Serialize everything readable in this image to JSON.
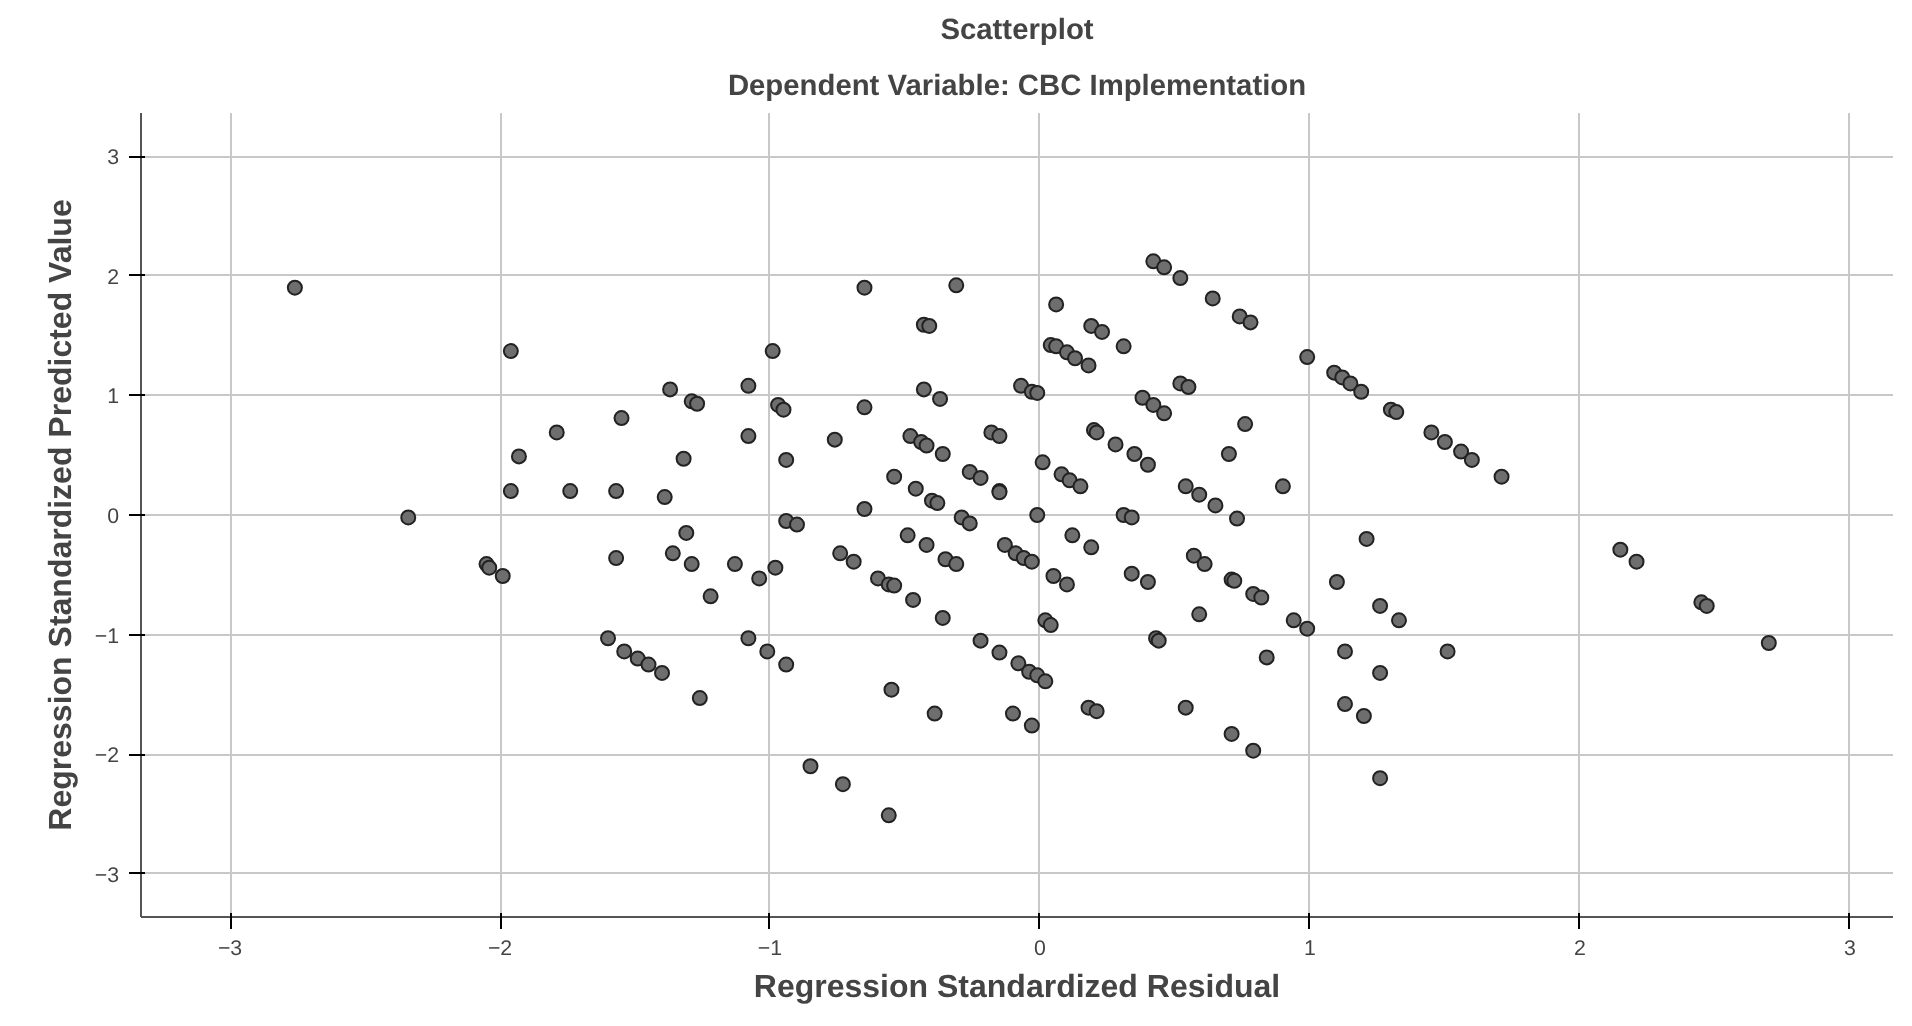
{
  "chart_data": {
    "type": "scatter",
    "title": "Scatterplot",
    "subtitle": "Dependent Variable: CBC Implementation",
    "xlabel": "Regression Standardized Residual",
    "ylabel": "Regression Standardized Predicted Value",
    "xlim": [
      -3.33,
      3.16
    ],
    "ylim": [
      -3.36,
      3.36
    ],
    "xticks": [
      -3,
      -2,
      -1,
      0,
      1,
      2,
      3
    ],
    "yticks": [
      -3,
      -2,
      -1,
      0,
      1,
      2,
      3
    ],
    "grid": true,
    "marker": "circle",
    "series": [
      {
        "color": "#6e6e6e",
        "x": [
          -2.76,
          -2.34,
          -1.96,
          -1.93,
          -1.96,
          -2.05,
          -2.04,
          -1.99,
          -1.79,
          -1.74,
          -1.55,
          -1.57,
          -1.6,
          -1.57,
          -1.54,
          -1.49,
          -1.45,
          -1.4,
          -1.39,
          -1.37,
          -1.32,
          -1.31,
          -1.36,
          -1.29,
          -1.29,
          -1.27,
          -1.26,
          -1.22,
          -1.13,
          -1.08,
          -1.08,
          -1.08,
          -1.04,
          -1.01,
          -0.99,
          -0.98,
          -0.97,
          -0.95,
          -0.94,
          -0.94,
          -0.94,
          -0.9,
          0.42,
          0.46,
          -0.65,
          -0.31,
          0.06,
          -0.43,
          -0.41,
          0.19,
          0.23,
          0.31,
          0.04,
          0.06,
          0.1,
          0.13,
          0.18,
          -0.43,
          -0.37,
          -0.07,
          -0.03,
          -0.01,
          0.38,
          0.42,
          0.46,
          -0.65,
          -0.76,
          -0.48,
          -0.44,
          -0.42,
          -0.36,
          -0.18,
          -0.15,
          0.2,
          0.21,
          0.28,
          0.35,
          0.4,
          0.01,
          -0.54,
          -0.46,
          -0.4,
          -0.38,
          -0.26,
          -0.22,
          -0.15,
          -0.15,
          0.08,
          0.11,
          0.15,
          -0.65,
          -0.01,
          -0.29,
          -0.26,
          0.31,
          0.34,
          -0.49,
          -0.42,
          -0.35,
          -0.31,
          -0.13,
          -0.09,
          -0.06,
          -0.03,
          0.12,
          0.19,
          -0.74,
          -0.69,
          -0.6,
          -0.56,
          -0.54,
          -0.47,
          -0.36,
          0.05,
          0.1,
          0.34,
          0.4,
          0.02,
          0.04,
          -0.22,
          -0.15,
          -0.08,
          -0.04,
          -0.01,
          0.02,
          0.43,
          0.44,
          -0.55,
          -0.39,
          -0.1,
          -0.03,
          0.18,
          0.21,
          -0.85,
          -0.73,
          -0.56,
          0.52,
          0.64,
          0.74,
          0.78,
          0.99,
          1.09,
          1.12,
          1.15,
          1.19,
          0.52,
          0.55,
          1.3,
          1.32,
          1.45,
          1.5,
          1.56,
          1.6,
          1.71,
          0.76,
          0.7,
          0.54,
          0.59,
          0.65,
          0.9,
          0.73,
          1.21,
          0.57,
          0.61,
          0.71,
          0.72,
          0.79,
          0.82,
          1.1,
          0.59,
          0.94,
          0.99,
          1.26,
          1.33,
          0.84,
          1.13,
          1.51,
          1.26,
          0.54,
          1.13,
          1.2,
          0.71,
          0.79,
          1.26,
          2.15,
          2.21,
          2.45,
          2.47,
          2.7
        ],
        "values": [
          1.9,
          -0.02,
          1.37,
          0.49,
          0.2,
          -0.41,
          -0.44,
          -0.51,
          0.69,
          0.2,
          0.81,
          0.2,
          -1.03,
          -0.36,
          -1.14,
          -1.2,
          -1.25,
          -1.32,
          0.15,
          1.05,
          0.47,
          -0.15,
          -0.32,
          -0.41,
          0.95,
          0.93,
          -1.53,
          -0.68,
          -0.41,
          1.08,
          0.66,
          -1.03,
          -0.53,
          -1.14,
          1.37,
          -0.44,
          0.92,
          0.88,
          0.46,
          -1.25,
          -0.05,
          -0.08,
          2.12,
          2.07,
          1.9,
          1.92,
          1.76,
          1.59,
          1.58,
          1.58,
          1.53,
          1.41,
          1.42,
          1.41,
          1.36,
          1.31,
          1.25,
          1.05,
          0.97,
          1.08,
          1.03,
          1.02,
          0.98,
          0.92,
          0.85,
          0.9,
          0.63,
          0.66,
          0.61,
          0.58,
          0.51,
          0.69,
          0.66,
          0.71,
          0.69,
          0.59,
          0.51,
          0.42,
          0.44,
          0.32,
          0.22,
          0.12,
          0.1,
          0.36,
          0.31,
          0.2,
          0.19,
          0.34,
          0.29,
          0.24,
          0.05,
          0.0,
          -0.02,
          -0.07,
          0.0,
          -0.02,
          -0.17,
          -0.25,
          -0.37,
          -0.41,
          -0.25,
          -0.32,
          -0.36,
          -0.39,
          -0.17,
          -0.27,
          -0.32,
          -0.39,
          -0.53,
          -0.58,
          -0.59,
          -0.71,
          -0.86,
          -0.51,
          -0.58,
          -0.49,
          -0.56,
          -0.88,
          -0.92,
          -1.05,
          -1.15,
          -1.24,
          -1.31,
          -1.34,
          -1.39,
          -1.03,
          -1.05,
          -1.46,
          -1.66,
          -1.66,
          -1.76,
          -1.61,
          -1.64,
          -2.1,
          -2.25,
          -2.51,
          1.98,
          1.81,
          1.66,
          1.61,
          1.32,
          1.19,
          1.15,
          1.1,
          1.03,
          1.1,
          1.07,
          0.88,
          0.86,
          0.69,
          0.61,
          0.53,
          0.46,
          0.32,
          0.76,
          0.51,
          0.24,
          0.17,
          0.08,
          0.24,
          -0.03,
          -0.2,
          -0.34,
          -0.41,
          -0.54,
          -0.55,
          -0.66,
          -0.69,
          -0.56,
          -0.83,
          -0.88,
          -0.95,
          -0.76,
          -0.88,
          -1.19,
          -1.14,
          -1.14,
          -1.32,
          -1.61,
          -1.58,
          -1.68,
          -1.83,
          -1.97,
          -2.2,
          -0.29,
          -0.39,
          -0.73,
          -0.76,
          -1.07
        ]
      }
    ]
  }
}
